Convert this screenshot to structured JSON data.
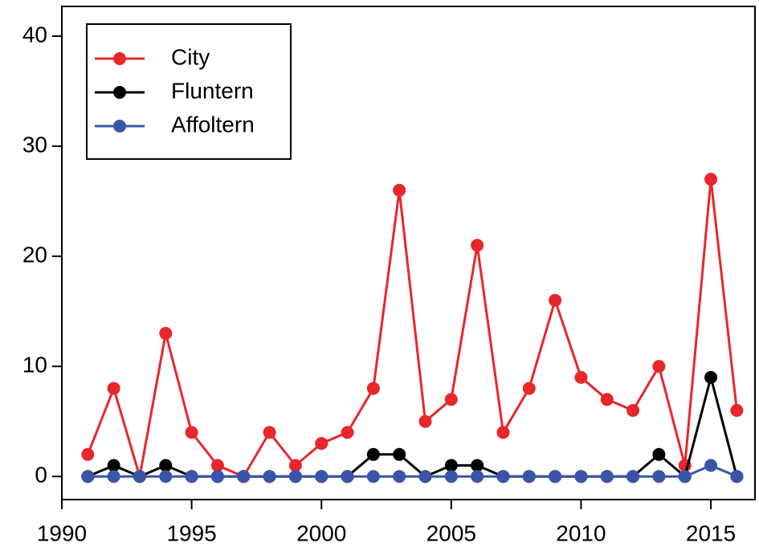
{
  "chart_data": {
    "type": "line",
    "x": [
      1991,
      1992,
      1993,
      1994,
      1995,
      1996,
      1997,
      1998,
      1999,
      2000,
      2001,
      2002,
      2003,
      2004,
      2005,
      2006,
      2007,
      2008,
      2009,
      2010,
      2011,
      2012,
      2013,
      2014,
      2015,
      2016
    ],
    "series": [
      {
        "name": "City",
        "color": "#e8262b",
        "values": [
          2,
          8,
          0,
          13,
          4,
          1,
          0,
          4,
          1,
          3,
          4,
          8,
          26,
          5,
          7,
          21,
          4,
          8,
          16,
          9,
          7,
          6,
          10,
          1,
          27,
          6
        ]
      },
      {
        "name": "Fluntern",
        "color": "#000000",
        "values": [
          0,
          1,
          0,
          1,
          0,
          0,
          0,
          0,
          0,
          0,
          0,
          2,
          2,
          0,
          1,
          1,
          0,
          0,
          0,
          0,
          0,
          0,
          2,
          0,
          9,
          0
        ]
      },
      {
        "name": "Affoltern",
        "color": "#3a55a8",
        "values": [
          0,
          0,
          0,
          0,
          0,
          0,
          0,
          0,
          0,
          0,
          0,
          0,
          0,
          0,
          0,
          0,
          0,
          0,
          0,
          0,
          0,
          0,
          0,
          0,
          1,
          0
        ]
      }
    ],
    "xlim": [
      1990,
      2016.7
    ],
    "xticks": [
      1990,
      1995,
      2000,
      2005,
      2010,
      2015
    ],
    "ylim": [
      -2.1,
      42.7
    ],
    "yticks": [
      0,
      10,
      20,
      30,
      40
    ],
    "grid": false,
    "legend": "top-left"
  }
}
